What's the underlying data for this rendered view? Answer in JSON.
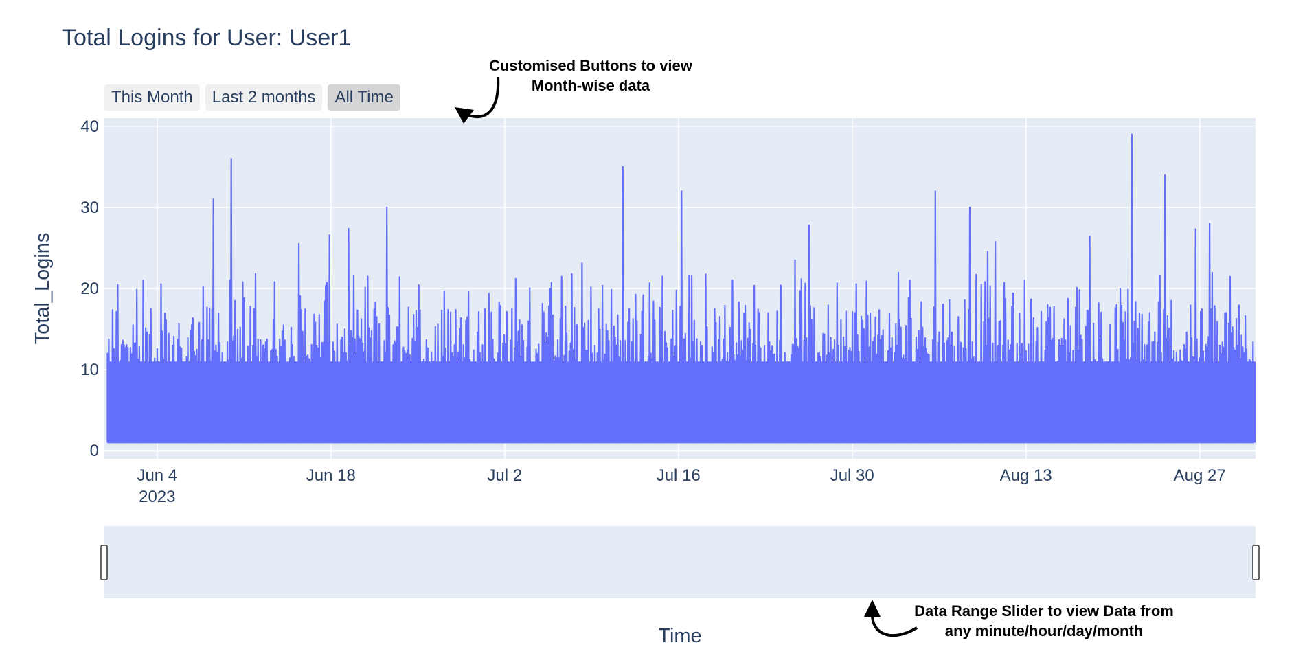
{
  "chart_data": {
    "type": "line",
    "title": "Total Logins for User: User1",
    "xlabel": "Time",
    "ylabel": "Total_Logins",
    "x_range": [
      "2023-05-30T18:00",
      "2023-08-31T12:00"
    ],
    "ylim": [
      -1,
      41
    ],
    "y_ticks": [
      0,
      10,
      20,
      30,
      40
    ],
    "x_ticks": [
      {
        "date": "2023-06-04",
        "label": "Jun 4",
        "sublabel": "2023"
      },
      {
        "date": "2023-06-18",
        "label": "Jun 18"
      },
      {
        "date": "2023-07-02",
        "label": "Jul 2"
      },
      {
        "date": "2023-07-16",
        "label": "Jul 16"
      },
      {
        "date": "2023-07-30",
        "label": "Jul 30"
      },
      {
        "date": "2023-08-13",
        "label": "Aug 13"
      },
      {
        "date": "2023-08-27",
        "label": "Aug 27"
      }
    ],
    "grid": true,
    "legend": "none",
    "series": [
      {
        "color": "#636efa",
        "x_start": "2023-05-31T00:00",
        "x_end": "2023-08-31T12:00",
        "baseline": 1,
        "notable_peaks": [
          {
            "date": "2023-06-08T12:00",
            "value": 31
          },
          {
            "date": "2023-06-10T00:00",
            "value": 36
          },
          {
            "date": "2023-06-22T12:00",
            "value": 30
          },
          {
            "date": "2023-07-11T12:00",
            "value": 35
          },
          {
            "date": "2023-07-16T06:00",
            "value": 32
          },
          {
            "date": "2023-08-05T18:00",
            "value": 32
          },
          {
            "date": "2023-08-08T12:00",
            "value": 30
          },
          {
            "date": "2023-08-21T12:00",
            "value": 39
          },
          {
            "date": "2023-08-24T06:00",
            "value": 34
          },
          {
            "date": "2023-08-27T18:00",
            "value": 28
          }
        ]
      }
    ]
  },
  "range_buttons": [
    {
      "label": "This Month",
      "active": false
    },
    {
      "label": "Last 2 months",
      "active": false
    },
    {
      "label": "All Time",
      "active": true
    }
  ],
  "annotations": {
    "buttons_note_line1": "Customised Buttons to view",
    "buttons_note_line2": "Month-wise data",
    "slider_note_line1": "Data Range Slider to view Data from",
    "slider_note_line2": "any minute/hour/day/month"
  }
}
